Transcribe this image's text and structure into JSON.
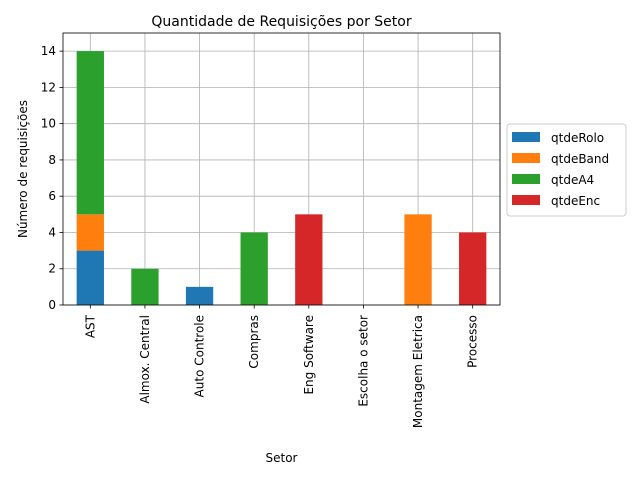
{
  "chart_data": {
    "type": "bar",
    "stacked": true,
    "title": "Quantidade de Requisições por Setor",
    "xlabel": "Setor",
    "ylabel": "Número de requisições",
    "ylim": [
      0,
      15
    ],
    "yticks": [
      0,
      2,
      4,
      6,
      8,
      10,
      12,
      14
    ],
    "grid": true,
    "legend_position": "right",
    "categories": [
      "AST",
      "Almox. Central",
      "Auto Controle",
      "Compras",
      "Eng Software",
      "Escolha o setor",
      "Montagem Eletrica",
      "Processo"
    ],
    "series": [
      {
        "name": "qtdeRolo",
        "color": "#1f77b4",
        "values": [
          3,
          0,
          1,
          0,
          0,
          0,
          0,
          0
        ]
      },
      {
        "name": "qtdeBand",
        "color": "#ff7f0e",
        "values": [
          2,
          0,
          0,
          0,
          0,
          0,
          5,
          0
        ]
      },
      {
        "name": "qtdeA4",
        "color": "#2ca02c",
        "values": [
          9,
          2,
          0,
          4,
          0,
          0,
          0,
          0
        ]
      },
      {
        "name": "qtdeEnc",
        "color": "#d62728",
        "values": [
          0,
          0,
          0,
          0,
          5,
          0,
          0,
          4
        ]
      }
    ]
  }
}
